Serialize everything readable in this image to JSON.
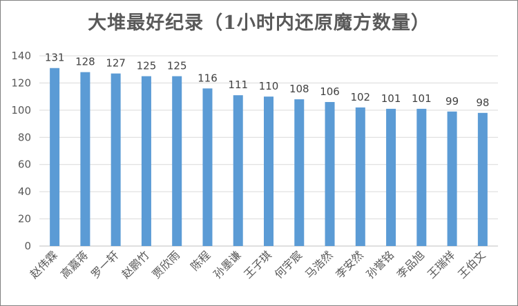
{
  "chart_data": {
    "type": "bar",
    "title": "大堆最好纪录（1小时内还原魔方数量）",
    "xlabel": "",
    "ylabel": "",
    "categories": [
      "赵伟霖",
      "高嘉蒋",
      "罗一轩",
      "赵鹏竹",
      "贾欣雨",
      "陈程",
      "孙墨谦",
      "王子琪",
      "何宇宸",
      "马浩然",
      "李安然",
      "孙誉铭",
      "李品旭",
      "王瑞祥",
      "王伯文"
    ],
    "values": [
      131,
      128,
      127,
      125,
      125,
      116,
      111,
      110,
      108,
      106,
      102,
      101,
      101,
      99,
      98
    ],
    "ylim": [
      0,
      140
    ],
    "yticks": [
      0,
      20,
      40,
      60,
      80,
      100,
      120,
      140
    ],
    "grid": true,
    "legend": "none",
    "bar_color": "#5b9bd5"
  }
}
